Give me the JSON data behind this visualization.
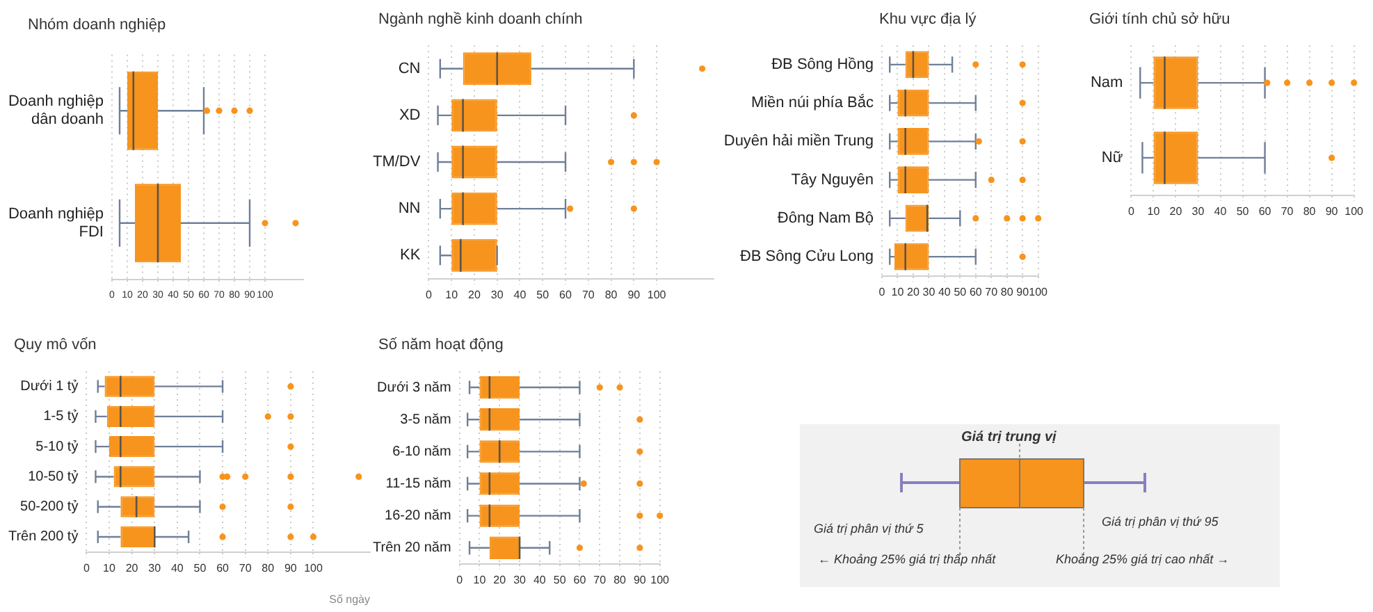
{
  "chart_data": [
    {
      "type": "box",
      "title": "Nhóm doanh nghiệp",
      "orientation": "horizontal",
      "color": "#f7941d",
      "grid": "x",
      "categories": [
        "Doanh nghiệp dân doanh",
        "Doanh nghiệp FDI"
      ],
      "boxes": [
        {
          "low": 5,
          "q1": 10,
          "median": 14,
          "q3": 30,
          "high": 60,
          "outliers": [
            62,
            70,
            80,
            90
          ]
        },
        {
          "low": 5,
          "q1": 15,
          "median": 30,
          "q3": 45,
          "high": 90,
          "outliers": [
            100,
            120
          ]
        }
      ],
      "xlim": [
        0,
        125
      ],
      "xticks": [
        0,
        10,
        20,
        30,
        40,
        50,
        60,
        70,
        80,
        90,
        100
      ]
    },
    {
      "type": "box",
      "title": "Ngành nghề kinh doanh chính",
      "orientation": "horizontal",
      "color": "#f7941d",
      "grid": "x",
      "categories": [
        "CN",
        "XD",
        "TM/DV",
        "NN",
        "KK"
      ],
      "boxes": [
        {
          "low": 5,
          "q1": 15,
          "median": 30,
          "q3": 45,
          "high": 90,
          "outliers": [
            120
          ]
        },
        {
          "low": 4,
          "q1": 10,
          "median": 15,
          "q3": 30,
          "high": 60,
          "outliers": [
            90
          ]
        },
        {
          "low": 4,
          "q1": 10,
          "median": 15,
          "q3": 30,
          "high": 60,
          "outliers": [
            80,
            90,
            100
          ]
        },
        {
          "low": 5,
          "q1": 10,
          "median": 15,
          "q3": 30,
          "high": 60,
          "outliers": [
            62,
            90
          ]
        },
        {
          "low": 5,
          "q1": 10,
          "median": 14,
          "q3": 30,
          "high": 30
        }
      ],
      "xlim": [
        0,
        125
      ],
      "xticks": [
        0,
        10,
        20,
        30,
        40,
        50,
        60,
        70,
        80,
        90,
        100
      ]
    },
    {
      "type": "box",
      "title": "Khu vực địa lý",
      "orientation": "horizontal",
      "color": "#f7941d",
      "grid": "x",
      "categories": [
        "ĐB Sông Hồng",
        "Miền núi phía Bắc",
        "Duyên hải miền Trung",
        "Tây Nguyên",
        "Đông Nam Bộ",
        "ĐB Sông Cửu Long"
      ],
      "boxes": [
        {
          "low": 5,
          "q1": 15,
          "median": 20,
          "q3": 30,
          "high": 45,
          "outliers": [
            60,
            90
          ]
        },
        {
          "low": 5,
          "q1": 10,
          "median": 15,
          "q3": 30,
          "high": 60,
          "outliers": [
            90
          ]
        },
        {
          "low": 5,
          "q1": 10,
          "median": 15,
          "q3": 30,
          "high": 60,
          "outliers": [
            62,
            90
          ]
        },
        {
          "low": 5,
          "q1": 10,
          "median": 15,
          "q3": 30,
          "high": 60,
          "outliers": [
            70,
            90
          ]
        },
        {
          "low": 5,
          "q1": 15,
          "median": 29,
          "q3": 30,
          "high": 50,
          "outliers": [
            60,
            80,
            90,
            100
          ]
        },
        {
          "low": 5,
          "q1": 8,
          "median": 15,
          "q3": 30,
          "high": 60,
          "outliers": [
            90
          ]
        }
      ],
      "xlim": [
        0,
        100
      ],
      "xticks": [
        0,
        10,
        20,
        30,
        40,
        50,
        60,
        70,
        80,
        90,
        100
      ]
    },
    {
      "type": "box",
      "title": "Giới tính chủ sở hữu",
      "orientation": "horizontal",
      "color": "#f7941d",
      "grid": "x",
      "categories": [
        "Nam",
        "Nữ"
      ],
      "boxes": [
        {
          "low": 4,
          "q1": 10,
          "median": 15,
          "q3": 30,
          "high": 60,
          "outliers": [
            61,
            70,
            80,
            90,
            100
          ]
        },
        {
          "low": 5,
          "q1": 10,
          "median": 15,
          "q3": 30,
          "high": 60,
          "outliers": [
            90
          ]
        }
      ],
      "xlim": [
        0,
        100
      ],
      "xticks": [
        0,
        10,
        20,
        30,
        40,
        50,
        60,
        70,
        80,
        90,
        100
      ]
    },
    {
      "type": "box",
      "title": "Quy mô vốn",
      "xlabel": "Số ngày",
      "orientation": "horizontal",
      "color": "#f7941d",
      "grid": "x",
      "categories": [
        "Dưới 1 tỷ",
        "1-5 tỷ",
        "5-10 tỷ",
        "10-50 tỷ",
        "50-200 tỷ",
        "Trên 200 tỷ"
      ],
      "boxes": [
        {
          "low": 5,
          "q1": 8,
          "median": 15,
          "q3": 30,
          "high": 60,
          "outliers": [
            90
          ]
        },
        {
          "low": 4,
          "q1": 9,
          "median": 15,
          "q3": 30,
          "high": 60,
          "outliers": [
            80,
            90
          ]
        },
        {
          "low": 4,
          "q1": 10,
          "median": 15,
          "q3": 30,
          "high": 60,
          "outliers": [
            90
          ]
        },
        {
          "low": 4,
          "q1": 12,
          "median": 15,
          "q3": 30,
          "high": 50,
          "outliers": [
            60,
            62,
            70,
            90,
            120
          ]
        },
        {
          "low": 5,
          "q1": 15,
          "median": 22,
          "q3": 30,
          "high": 50,
          "outliers": [
            60,
            90
          ]
        },
        {
          "low": 5,
          "q1": 15,
          "median": 30,
          "q3": 30,
          "high": 45,
          "outliers": [
            60,
            90,
            100
          ]
        }
      ],
      "xlim": [
        0,
        125
      ],
      "xticks": [
        0,
        10,
        20,
        30,
        40,
        50,
        60,
        70,
        80,
        90,
        100
      ]
    },
    {
      "type": "box",
      "title": "Số năm hoạt động",
      "orientation": "horizontal",
      "color": "#f7941d",
      "grid": "x",
      "categories": [
        "Dưới 3 năm",
        "3-5 năm",
        "6-10 năm",
        "11-15 năm",
        "16-20 năm",
        "Trên 20 năm"
      ],
      "boxes": [
        {
          "low": 5,
          "q1": 10,
          "median": 15,
          "q3": 30,
          "high": 60,
          "outliers": [
            70,
            80
          ]
        },
        {
          "low": 4,
          "q1": 10,
          "median": 15,
          "q3": 30,
          "high": 60,
          "outliers": [
            90
          ]
        },
        {
          "low": 4,
          "q1": 10,
          "median": 20,
          "q3": 30,
          "high": 60,
          "outliers": [
            90
          ]
        },
        {
          "low": 4,
          "q1": 10,
          "median": 15,
          "q3": 30,
          "high": 60,
          "outliers": [
            62,
            90
          ]
        },
        {
          "low": 4,
          "q1": 10,
          "median": 15,
          "q3": 30,
          "high": 60,
          "outliers": [
            90,
            100
          ]
        },
        {
          "low": 5,
          "q1": 15,
          "median": 30,
          "q3": 30,
          "high": 45,
          "outliers": [
            60,
            90
          ]
        }
      ],
      "xlim": [
        0,
        100
      ],
      "xticks": [
        0,
        10,
        20,
        30,
        40,
        50,
        60,
        70,
        80,
        90,
        100
      ]
    },
    {
      "type": "other",
      "annotations": [
        "Giá trị trung vị",
        "Giá trị phân vị thứ 5",
        "Giá trị phân vị thứ 95",
        "← Khoảng 25% giá trị thấp nhất",
        "Khoảng 25% giá trị cao nhất →"
      ]
    }
  ]
}
